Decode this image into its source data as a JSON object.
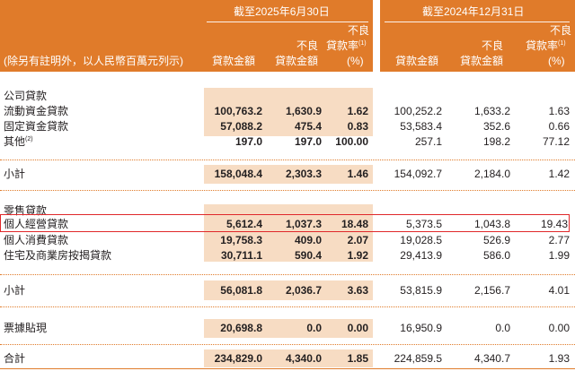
{
  "header": {
    "period_1": "截至2025年6月30日",
    "period_2": "截至2024年12月31日",
    "note": "(除另有註明外，以人民幣百萬元列示)",
    "col_loans": "貸款金額",
    "col_npl_line1": "不良",
    "col_npl_line2": "貸款金額",
    "col_ratio_line1": "不良",
    "col_ratio_line2": "貸款率",
    "col_ratio_sup": "(1)",
    "col_ratio_unit": "(%)"
  },
  "sections": {
    "corporate": "公司貸款",
    "retail": "零售貸款"
  },
  "rows": [
    {
      "label": "流動資金貸款",
      "sup": "",
      "v": [
        "100,763.2",
        "1,630.9",
        "1.62",
        "100,252.2",
        "1,633.2",
        "1.63"
      ]
    },
    {
      "label": "固定資金貸款",
      "sup": "",
      "v": [
        "57,088.2",
        "475.4",
        "0.83",
        "53,583.4",
        "352.6",
        "0.66"
      ]
    },
    {
      "label": "其他",
      "sup": "(2)",
      "v": [
        "197.0",
        "197.0",
        "100.00",
        "257.1",
        "198.2",
        "77.12"
      ]
    },
    {
      "label": "小計",
      "sup": "",
      "v": [
        "158,048.4",
        "2,303.3",
        "1.46",
        "154,092.7",
        "2,184.0",
        "1.42"
      ]
    },
    {
      "label": "個人經營貸款",
      "sup": "",
      "v": [
        "5,612.4",
        "1,037.3",
        "18.48",
        "5,373.5",
        "1,043.8",
        "19.43"
      ]
    },
    {
      "label": "個人消費貸款",
      "sup": "",
      "v": [
        "19,758.3",
        "409.0",
        "2.07",
        "19,028.5",
        "526.9",
        "2.77"
      ]
    },
    {
      "label": "住宅及商業房按揭貸款",
      "sup": "",
      "v": [
        "30,711.1",
        "590.4",
        "1.92",
        "29,413.9",
        "586.0",
        "1.99"
      ]
    },
    {
      "label": "小計",
      "sup": "",
      "v": [
        "56,081.8",
        "2,036.7",
        "3.63",
        "53,815.9",
        "2,156.7",
        "4.01"
      ]
    },
    {
      "label": "票據貼現",
      "sup": "",
      "v": [
        "20,698.8",
        "0.0",
        "0.00",
        "16,950.9",
        "0.0",
        "0.00"
      ]
    },
    {
      "label": "合計",
      "sup": "",
      "v": [
        "234,829.0",
        "4,340.0",
        "1.85",
        "224,859.5",
        "4,340.7",
        "1.93"
      ]
    }
  ]
}
